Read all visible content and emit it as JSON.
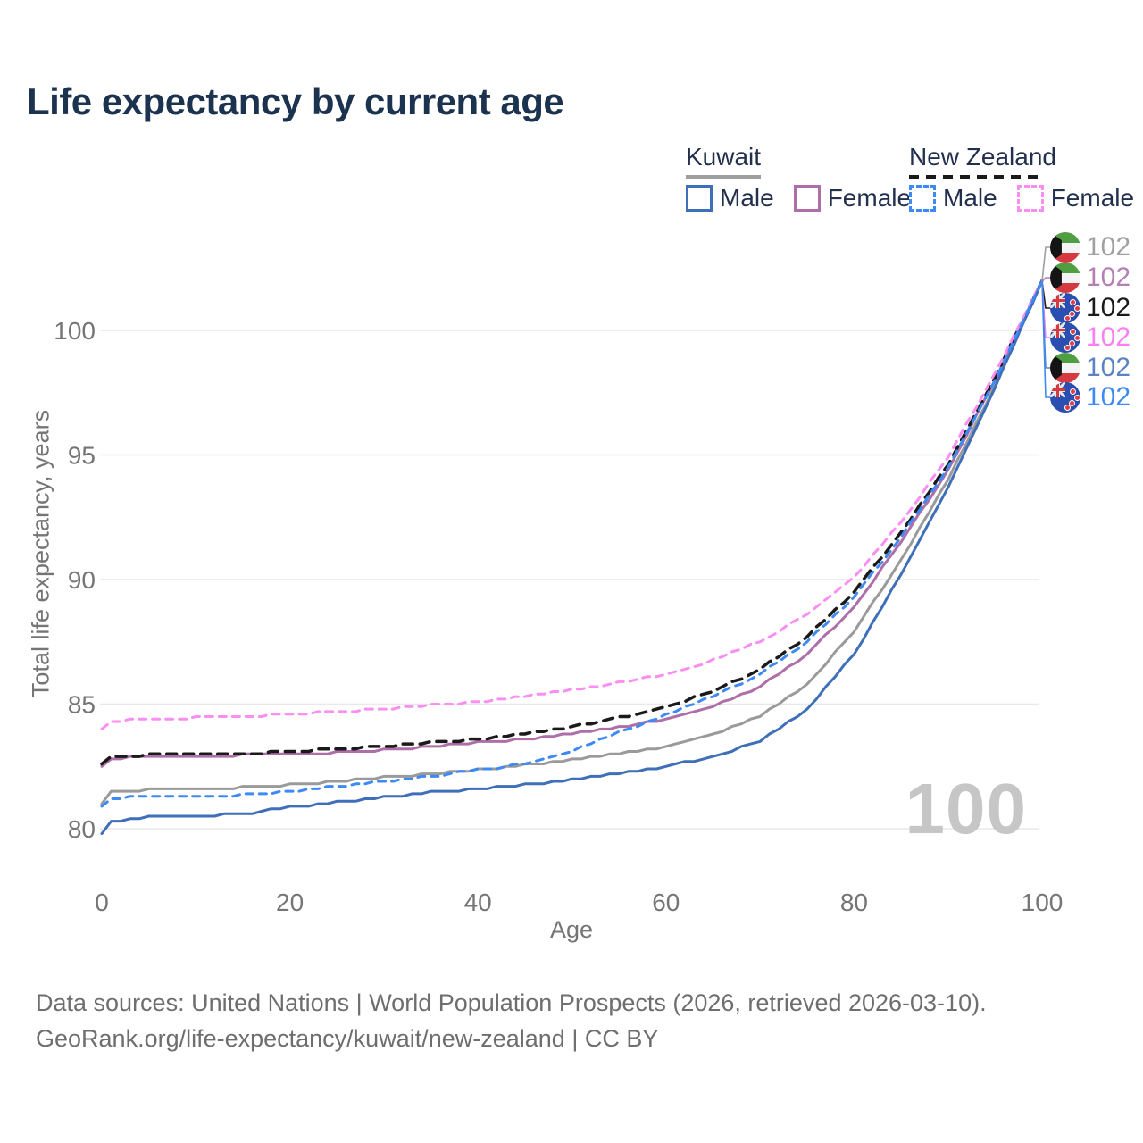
{
  "title": "Life expectancy by current age",
  "legend": {
    "groups": [
      {
        "name": "Kuwait",
        "line_style": "solid",
        "items": [
          {
            "label": "Male",
            "color": "#3e6fb8",
            "dashed": false
          },
          {
            "label": "Female",
            "color": "#ae6fa9",
            "dashed": false
          }
        ]
      },
      {
        "name": "New Zealand",
        "line_style": "dashed",
        "items": [
          {
            "label": "Male",
            "color": "#3d8af5",
            "dashed": true
          },
          {
            "label": "Female",
            "color": "#fb8ef2",
            "dashed": true
          }
        ]
      }
    ]
  },
  "watermark": "100",
  "end_labels": [
    {
      "flag": "kuwait",
      "value": "102",
      "color": "#a0a0a0",
      "series": "Kuwait total"
    },
    {
      "flag": "kuwait",
      "value": "102",
      "color": "#b57fb3",
      "series": "Kuwait female"
    },
    {
      "flag": "new-zealand",
      "value": "102",
      "color": "#1a1a1a",
      "series": "New Zealand total"
    },
    {
      "flag": "new-zealand",
      "value": "102",
      "color": "#fb7ff0",
      "series": "New Zealand female"
    },
    {
      "flag": "kuwait",
      "value": "102",
      "color": "#5c84c2",
      "series": "Kuwait male"
    },
    {
      "flag": "new-zealand",
      "value": "102",
      "color": "#3d8af5",
      "series": "New Zealand male"
    }
  ],
  "footer": {
    "line1": "Data sources: United Nations | World Population Prospects (2026, retrieved 2026-03-10).",
    "line2": "GeoRank.org/life-expectancy/kuwait/new-zealand | CC BY"
  },
  "chart_data": {
    "type": "line",
    "title": "Life expectancy by current age",
    "xlabel": "Age",
    "ylabel": "Total life expectancy, years",
    "x_ticks": [
      0,
      20,
      40,
      60,
      80,
      100
    ],
    "y_ticks": [
      80,
      85,
      90,
      95,
      100
    ],
    "xlim": [
      0,
      100
    ],
    "ylim": [
      79.5,
      102
    ],
    "grid": "horizontal",
    "ages": [
      0,
      1,
      5,
      10,
      15,
      20,
      25,
      30,
      35,
      40,
      45,
      50,
      55,
      60,
      65,
      70,
      75,
      80,
      85,
      90,
      95,
      100
    ],
    "series": [
      {
        "name": "Kuwait Total",
        "country": "Kuwait",
        "sex": "both",
        "color": "#9a9a9a",
        "dash": null,
        "values": [
          81.0,
          81.45,
          81.55,
          81.6,
          81.65,
          81.75,
          81.9,
          82.05,
          82.2,
          82.35,
          82.55,
          82.75,
          83.0,
          83.3,
          83.8,
          84.5,
          85.8,
          87.9,
          90.8,
          94.0,
          97.8,
          102
        ]
      },
      {
        "name": "Kuwait Female",
        "country": "Kuwait",
        "sex": "female",
        "color": "#ae6fa9",
        "dash": null,
        "values": [
          82.45,
          82.8,
          82.9,
          82.9,
          82.95,
          83.0,
          83.05,
          83.15,
          83.3,
          83.45,
          83.6,
          83.8,
          84.05,
          84.4,
          84.9,
          85.7,
          87.0,
          88.9,
          91.5,
          94.4,
          98.0,
          102
        ]
      },
      {
        "name": "New Zealand Total",
        "country": "New Zealand",
        "sex": "both",
        "color": "#1a1a1a",
        "dash": [
          11,
          8
        ],
        "values": [
          82.6,
          82.9,
          82.95,
          82.95,
          83.0,
          83.1,
          83.2,
          83.3,
          83.45,
          83.6,
          83.8,
          84.1,
          84.45,
          84.9,
          85.5,
          86.4,
          87.7,
          89.5,
          91.9,
          94.6,
          98.1,
          102
        ]
      },
      {
        "name": "New Zealand Female",
        "country": "New Zealand",
        "sex": "female",
        "color": "#fb8ef2",
        "dash": [
          8,
          7
        ],
        "values": [
          83.95,
          84.3,
          84.4,
          84.45,
          84.5,
          84.6,
          84.7,
          84.8,
          84.95,
          85.1,
          85.3,
          85.55,
          85.85,
          86.2,
          86.75,
          87.5,
          88.6,
          90.1,
          92.3,
          94.9,
          98.3,
          102
        ]
      },
      {
        "name": "Kuwait Male",
        "country": "Kuwait",
        "sex": "male",
        "color": "#3e6fb8",
        "dash": null,
        "values": [
          79.8,
          80.3,
          80.45,
          80.5,
          80.6,
          80.85,
          81.05,
          81.25,
          81.45,
          81.6,
          81.75,
          81.95,
          82.2,
          82.5,
          82.9,
          83.5,
          84.8,
          87.0,
          90.2,
          93.7,
          97.7,
          102
        ]
      },
      {
        "name": "New Zealand Male",
        "country": "New Zealand",
        "sex": "male",
        "color": "#3d8af5",
        "dash": [
          8,
          7
        ],
        "values": [
          80.9,
          81.2,
          81.3,
          81.3,
          81.35,
          81.5,
          81.7,
          81.9,
          82.1,
          82.35,
          82.6,
          83.1,
          83.85,
          84.6,
          85.3,
          86.2,
          87.5,
          89.3,
          91.7,
          94.5,
          98.0,
          102
        ]
      }
    ],
    "end_value_all_series": 102
  }
}
